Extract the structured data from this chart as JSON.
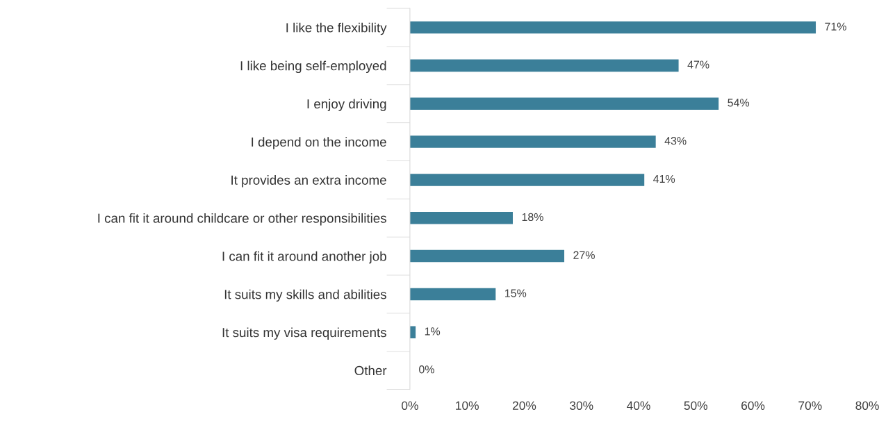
{
  "chart_data": {
    "type": "bar",
    "orientation": "horizontal",
    "categories": [
      "I like the flexibility",
      "I like being self-employed",
      "I enjoy driving",
      "I depend on the income",
      "It provides an extra income",
      "I can fit it around childcare or other responsibilities",
      "I can fit it around another job",
      "It suits my skills and abilities",
      "It suits my visa requirements",
      "Other"
    ],
    "values": [
      71,
      47,
      54,
      43,
      41,
      18,
      27,
      15,
      1,
      0
    ],
    "value_labels": [
      "71%",
      "47%",
      "54%",
      "43%",
      "41%",
      "18%",
      "27%",
      "15%",
      "1%",
      "0%"
    ],
    "color": "#3b7f99",
    "xlim": [
      0,
      80
    ],
    "xticks": [
      {
        "value": 0,
        "label": "0%"
      },
      {
        "value": 10,
        "label": "10%"
      },
      {
        "value": 20,
        "label": "20%"
      },
      {
        "value": 30,
        "label": "30%"
      },
      {
        "value": 40,
        "label": "40%"
      },
      {
        "value": 50,
        "label": "50%"
      },
      {
        "value": 60,
        "label": "60%"
      },
      {
        "value": 70,
        "label": "70%"
      },
      {
        "value": 80,
        "label": "80%"
      }
    ],
    "grid": false
  }
}
